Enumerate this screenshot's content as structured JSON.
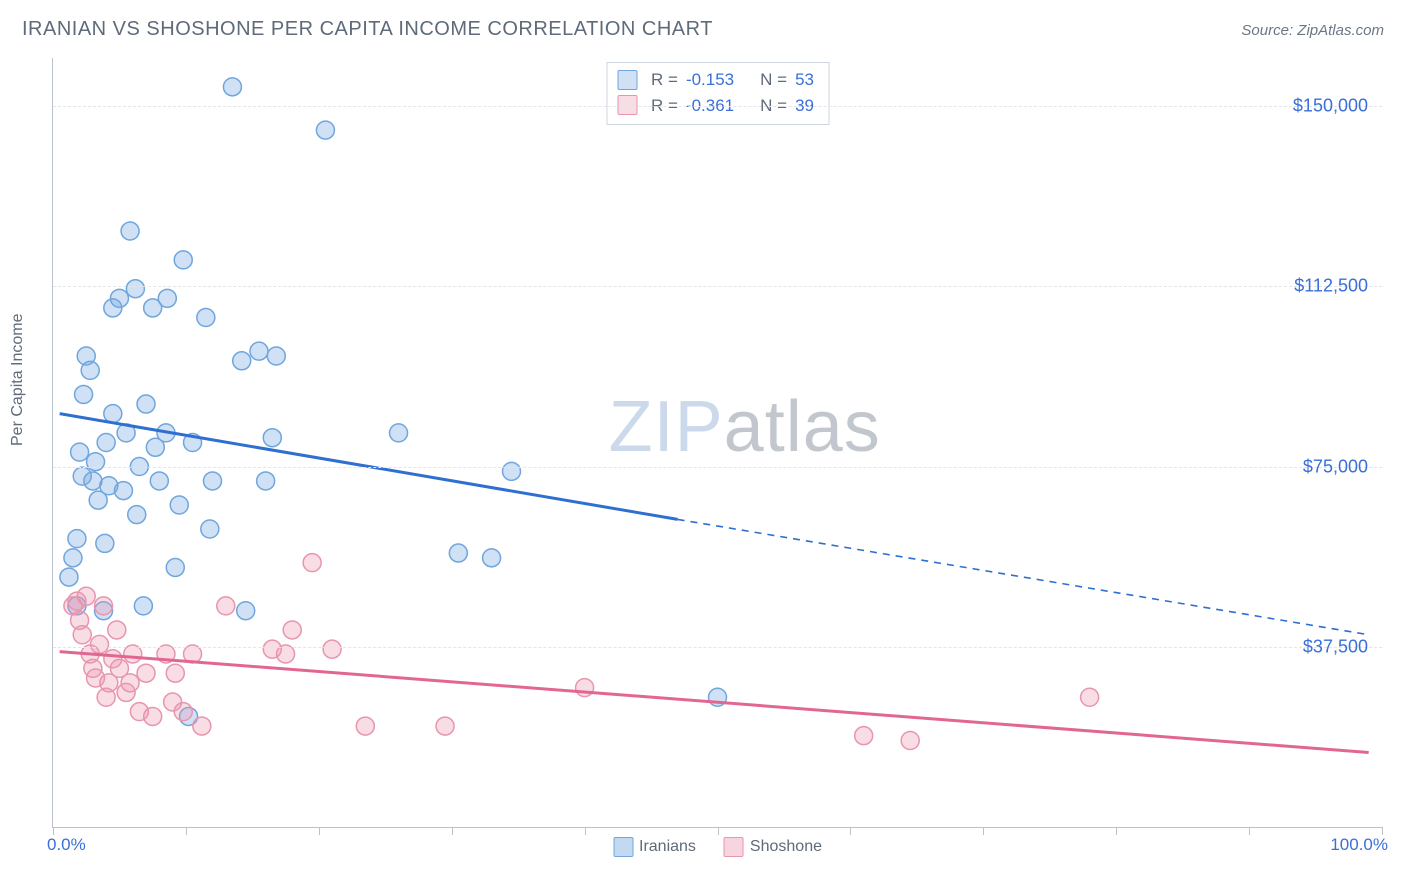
{
  "header": {
    "title": "IRANIAN VS SHOSHONE PER CAPITA INCOME CORRELATION CHART",
    "source_prefix": "Source: ",
    "source_name": "ZipAtlas.com"
  },
  "watermark": {
    "zip": "ZIP",
    "atlas": "atlas"
  },
  "chart": {
    "type": "scatter",
    "xlim": [
      0,
      100
    ],
    "ylim": [
      0,
      160000
    ],
    "x_label_min": "0.0%",
    "x_label_max": "100.0%",
    "y_axis_label": "Per Capita Income",
    "y_ticks": [
      {
        "value": 37500,
        "label": "$37,500"
      },
      {
        "value": 75000,
        "label": "$75,000"
      },
      {
        "value": 112500,
        "label": "$112,500"
      },
      {
        "value": 150000,
        "label": "$150,000"
      }
    ],
    "x_tick_values": [
      0,
      10,
      20,
      30,
      40,
      50,
      60,
      70,
      80,
      90,
      100
    ],
    "grid_color": "#e2e6eb",
    "axis_color": "#b9c2cc",
    "background_color": "#ffffff",
    "tick_label_color": "#3a6fd8",
    "axis_label_color": "#5f6b7a",
    "marker_radius": 9,
    "marker_stroke_width": 1.5,
    "trend_line_width": 3,
    "trend_dash_pattern": "7 6",
    "series": [
      {
        "name": "Iranians",
        "fill_color": "rgba(120,170,225,0.35)",
        "stroke_color": "#6fa6dd",
        "line_color": "#2f6fd0",
        "regression": {
          "R": "-0.153",
          "N": "53"
        },
        "trend": {
          "solid": {
            "x1": 0.5,
            "y1": 86000,
            "x2": 47,
            "y2": 64000
          },
          "dash": {
            "x1": 47,
            "y1": 64000,
            "x2": 99,
            "y2": 40000
          }
        },
        "points": [
          [
            1.2,
            52000
          ],
          [
            1.5,
            56000
          ],
          [
            1.8,
            60000
          ],
          [
            1.8,
            46000
          ],
          [
            2.0,
            78000
          ],
          [
            2.2,
            73000
          ],
          [
            2.3,
            90000
          ],
          [
            2.5,
            98000
          ],
          [
            2.8,
            95000
          ],
          [
            3.0,
            72000
          ],
          [
            3.2,
            76000
          ],
          [
            3.4,
            68000
          ],
          [
            3.8,
            45000
          ],
          [
            3.9,
            59000
          ],
          [
            4.0,
            80000
          ],
          [
            4.2,
            71000
          ],
          [
            4.5,
            86000
          ],
          [
            4.5,
            108000
          ],
          [
            5.0,
            110000
          ],
          [
            5.3,
            70000
          ],
          [
            5.5,
            82000
          ],
          [
            5.8,
            124000
          ],
          [
            6.2,
            112000
          ],
          [
            6.3,
            65000
          ],
          [
            6.5,
            75000
          ],
          [
            6.8,
            46000
          ],
          [
            7.0,
            88000
          ],
          [
            7.5,
            108000
          ],
          [
            7.7,
            79000
          ],
          [
            8.0,
            72000
          ],
          [
            8.5,
            82000
          ],
          [
            8.6,
            110000
          ],
          [
            9.2,
            54000
          ],
          [
            9.5,
            67000
          ],
          [
            9.8,
            118000
          ],
          [
            10.2,
            23000
          ],
          [
            10.5,
            80000
          ],
          [
            11.5,
            106000
          ],
          [
            11.8,
            62000
          ],
          [
            12.0,
            72000
          ],
          [
            13.5,
            154000
          ],
          [
            14.2,
            97000
          ],
          [
            14.5,
            45000
          ],
          [
            15.5,
            99000
          ],
          [
            16.0,
            72000
          ],
          [
            16.5,
            81000
          ],
          [
            16.8,
            98000
          ],
          [
            20.5,
            145000
          ],
          [
            26.0,
            82000
          ],
          [
            30.5,
            57000
          ],
          [
            33.0,
            56000
          ],
          [
            34.5,
            74000
          ],
          [
            50.0,
            27000
          ]
        ]
      },
      {
        "name": "Shoshone",
        "fill_color": "rgba(235,150,175,0.32)",
        "stroke_color": "#e895ae",
        "line_color": "#e26692",
        "regression": {
          "R": "-0.361",
          "N": "39"
        },
        "trend": {
          "solid": {
            "x1": 0.5,
            "y1": 36500,
            "x2": 99,
            "y2": 15500
          },
          "dash": null
        },
        "points": [
          [
            1.5,
            46000
          ],
          [
            1.8,
            47000
          ],
          [
            2.0,
            43000
          ],
          [
            2.2,
            40000
          ],
          [
            2.5,
            48000
          ],
          [
            2.8,
            36000
          ],
          [
            3.0,
            33000
          ],
          [
            3.2,
            31000
          ],
          [
            3.5,
            38000
          ],
          [
            3.8,
            46000
          ],
          [
            4.0,
            27000
          ],
          [
            4.2,
            30000
          ],
          [
            4.5,
            35000
          ],
          [
            4.8,
            41000
          ],
          [
            5.0,
            33000
          ],
          [
            5.5,
            28000
          ],
          [
            5.8,
            30000
          ],
          [
            6.0,
            36000
          ],
          [
            6.5,
            24000
          ],
          [
            7.0,
            32000
          ],
          [
            7.5,
            23000
          ],
          [
            8.5,
            36000
          ],
          [
            9.0,
            26000
          ],
          [
            9.2,
            32000
          ],
          [
            9.8,
            24000
          ],
          [
            10.5,
            36000
          ],
          [
            11.2,
            21000
          ],
          [
            13.0,
            46000
          ],
          [
            16.5,
            37000
          ],
          [
            17.5,
            36000
          ],
          [
            18.0,
            41000
          ],
          [
            19.5,
            55000
          ],
          [
            21.0,
            37000
          ],
          [
            23.5,
            21000
          ],
          [
            29.5,
            21000
          ],
          [
            40.0,
            29000
          ],
          [
            61.0,
            19000
          ],
          [
            64.5,
            18000
          ],
          [
            78.0,
            27000
          ]
        ]
      }
    ],
    "bottom_legend": [
      {
        "label": "Iranians",
        "fill": "rgba(120,170,225,0.45)",
        "border": "#6fa6dd"
      },
      {
        "label": "Shoshone",
        "fill": "rgba(235,150,175,0.40)",
        "border": "#e895ae"
      }
    ],
    "top_legend": {
      "R_label": "R = ",
      "N_label": "N = "
    }
  }
}
